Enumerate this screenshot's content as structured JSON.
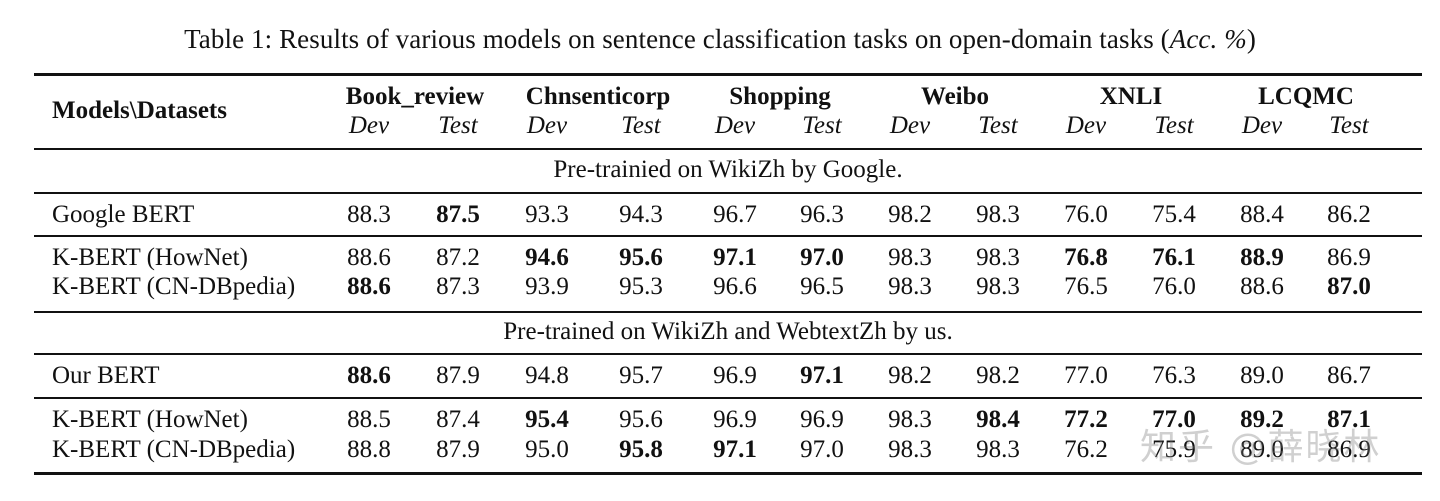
{
  "caption": {
    "prefix": "Table 1: Results of various models on sentence classification tasks on open-domain tasks (",
    "acc": "Acc. %",
    "suffix": ")"
  },
  "header": {
    "models_label": "Models\\Datasets",
    "datasets": [
      "Book_review",
      "Chnsenticorp",
      "Shopping",
      "Weibo",
      "XNLI",
      "LCQMC"
    ],
    "dev": "Dev",
    "test": "Test"
  },
  "sections": [
    {
      "title": "Pre-trainied on WikiZh by Google.",
      "groups": [
        [
          {
            "model": "Google BERT",
            "values": [
              "88.3",
              "87.5",
              "93.3",
              "94.3",
              "96.7",
              "96.3",
              "98.2",
              "98.3",
              "76.0",
              "75.4",
              "88.4",
              "86.2"
            ],
            "bold": [
              false,
              true,
              false,
              false,
              false,
              false,
              false,
              false,
              false,
              false,
              false,
              false
            ]
          }
        ],
        [
          {
            "model": "K-BERT (HowNet)",
            "values": [
              "88.6",
              "87.2",
              "94.6",
              "95.6",
              "97.1",
              "97.0",
              "98.3",
              "98.3",
              "76.8",
              "76.1",
              "88.9",
              "86.9"
            ],
            "bold": [
              false,
              false,
              true,
              true,
              true,
              true,
              false,
              false,
              true,
              true,
              true,
              false
            ]
          },
          {
            "model": "K-BERT (CN-DBpedia)",
            "values": [
              "88.6",
              "87.3",
              "93.9",
              "95.3",
              "96.6",
              "96.5",
              "98.3",
              "98.3",
              "76.5",
              "76.0",
              "88.6",
              "87.0"
            ],
            "bold": [
              true,
              false,
              false,
              false,
              false,
              false,
              false,
              false,
              false,
              false,
              false,
              true
            ]
          }
        ]
      ]
    },
    {
      "title": "Pre-trained on WikiZh and WebtextZh by us.",
      "groups": [
        [
          {
            "model": "Our BERT",
            "values": [
              "88.6",
              "87.9",
              "94.8",
              "95.7",
              "96.9",
              "97.1",
              "98.2",
              "98.2",
              "77.0",
              "76.3",
              "89.0",
              "86.7"
            ],
            "bold": [
              true,
              false,
              false,
              false,
              false,
              true,
              false,
              false,
              false,
              false,
              false,
              false
            ]
          }
        ],
        [
          {
            "model": "K-BERT (HowNet)",
            "values": [
              "88.5",
              "87.4",
              "95.4",
              "95.6",
              "96.9",
              "96.9",
              "98.3",
              "98.4",
              "77.2",
              "77.0",
              "89.2",
              "87.1"
            ],
            "bold": [
              false,
              false,
              true,
              false,
              false,
              false,
              false,
              true,
              true,
              true,
              true,
              true
            ]
          },
          {
            "model": "K-BERT (CN-DBpedia)",
            "values": [
              "88.8",
              "87.9",
              "95.0",
              "95.8",
              "97.1",
              "97.0",
              "98.3",
              "98.3",
              "76.2",
              "75.9",
              "89.0",
              "86.9"
            ],
            "bold": [
              false,
              false,
              false,
              true,
              true,
              false,
              false,
              false,
              false,
              false,
              false,
              false
            ]
          }
        ]
      ]
    }
  ],
  "watermark": "知乎 @薛晓林"
}
